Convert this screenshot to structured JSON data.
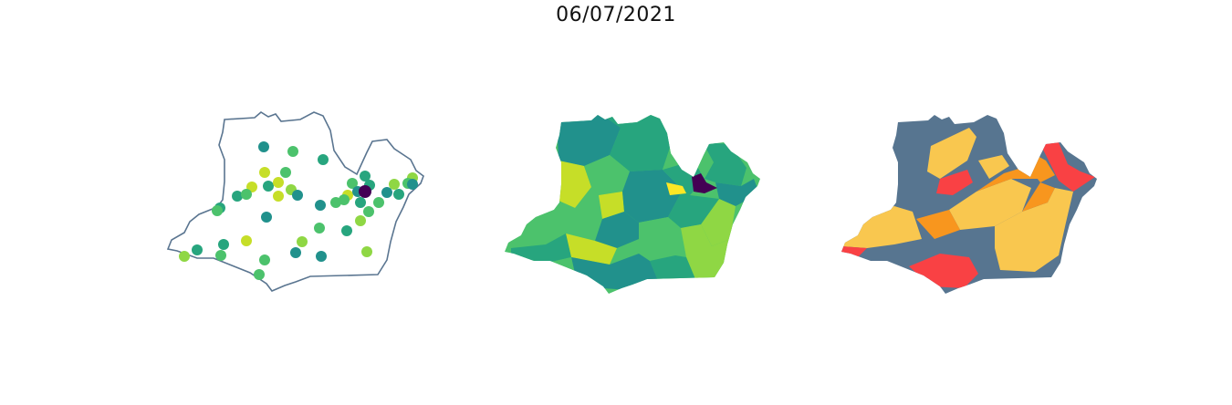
{
  "figure": {
    "title": "06/07/2021"
  },
  "colors": {
    "outline": "#5a7590",
    "background": "#ffffff",
    "viridis": {
      "dark": "#440154",
      "teal": "#21918c",
      "teal_green": "#27a57e",
      "green": "#4cc26c",
      "lime": "#8fd744",
      "yellow_green": "#c6de28",
      "yellow": "#fde725"
    },
    "categorical": {
      "slate": "#577590",
      "yellow": "#f9c74f",
      "orange": "#f8961e",
      "red": "#f94144"
    }
  },
  "maps": [
    {
      "id": "points",
      "type": "point-map",
      "region_outline": "state-boundary",
      "point_color_scale": "viridis",
      "highlight": "dark-purple"
    },
    {
      "id": "choropleth-continuous",
      "type": "choropleth",
      "color_scale": "viridis",
      "highlight": "dark-purple"
    },
    {
      "id": "choropleth-categorical",
      "type": "choropleth",
      "color_scale": "categorical",
      "categories_colors": [
        "slate",
        "yellow",
        "orange",
        "red"
      ]
    }
  ]
}
